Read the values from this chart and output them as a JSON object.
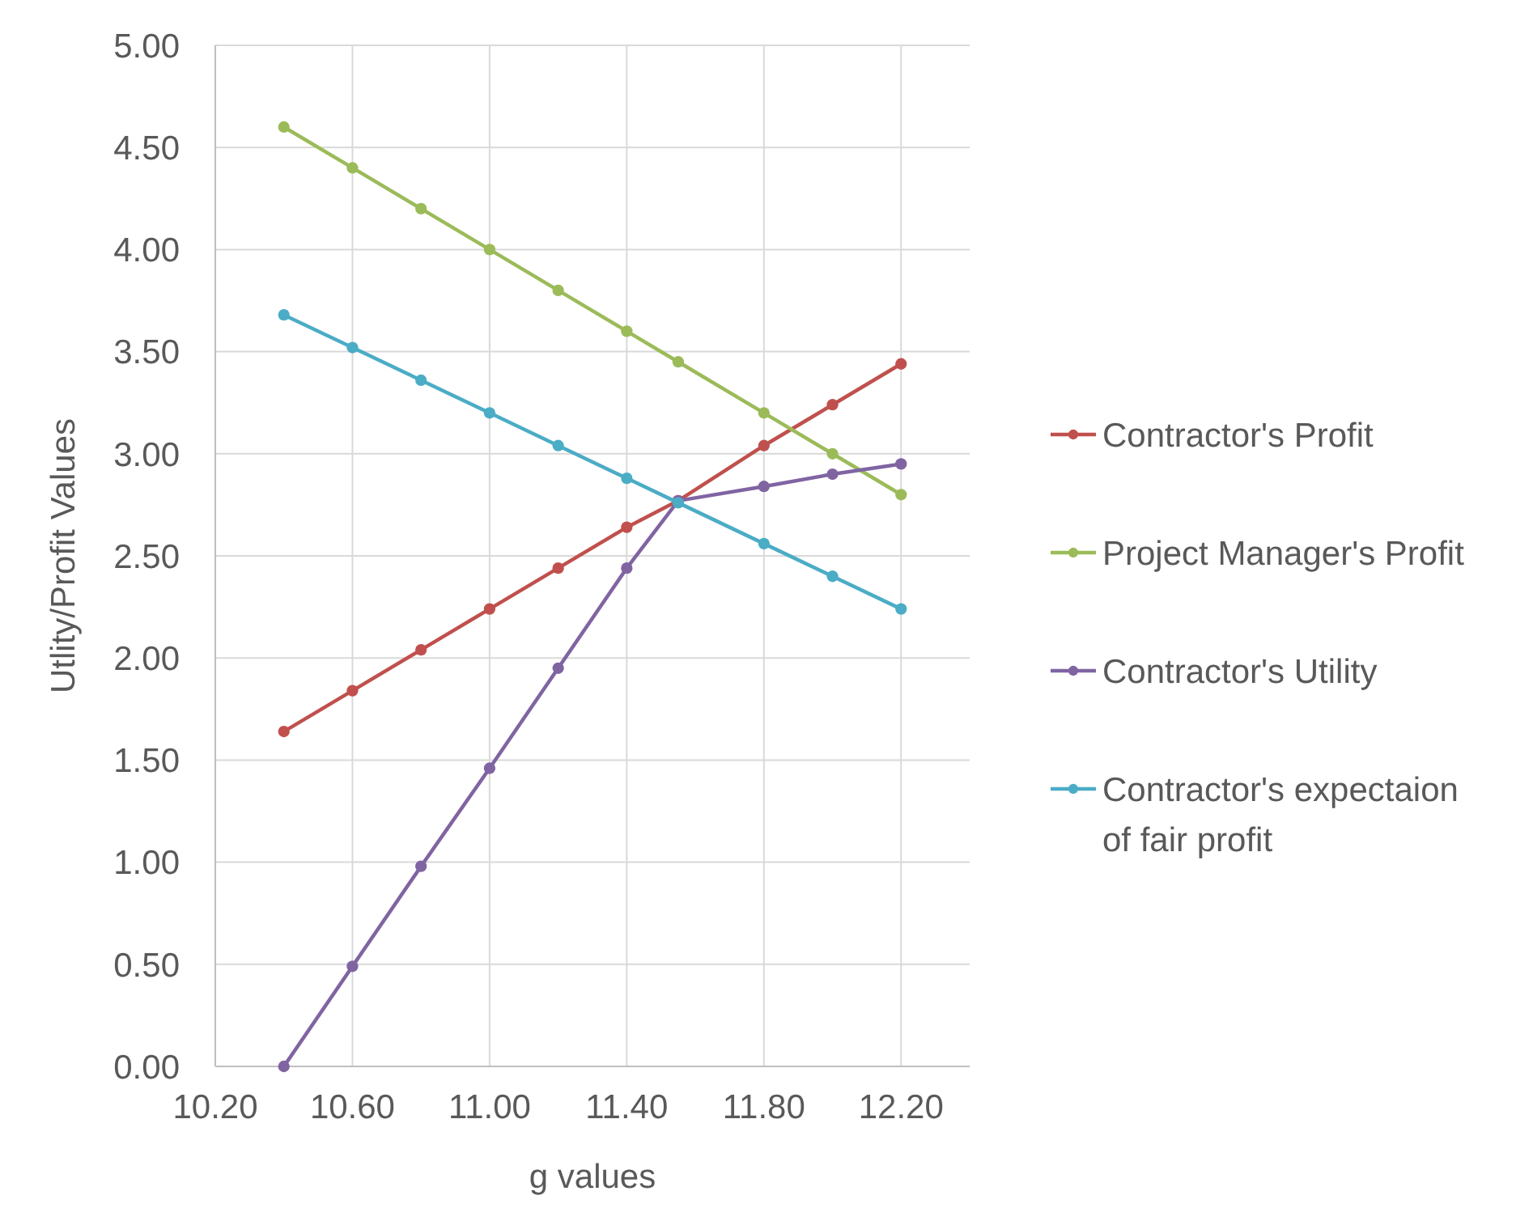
{
  "chart_data": {
    "type": "line",
    "xlabel": "g values",
    "ylabel": "Utlity/Profit Values",
    "xlim": [
      10.2,
      12.4
    ],
    "xticks": [
      {
        "value": 10.2,
        "label": "10.20"
      },
      {
        "value": 10.6,
        "label": "10.60"
      },
      {
        "value": 11.0,
        "label": "11.00"
      },
      {
        "value": 11.4,
        "label": "11.40"
      },
      {
        "value": 11.8,
        "label": "11.80"
      },
      {
        "value": 12.2,
        "label": "12.20"
      }
    ],
    "ylim": [
      0,
      5
    ],
    "yticks": [
      {
        "value": 0,
        "label": "0.00"
      },
      {
        "value": 0.5,
        "label": "0.50"
      },
      {
        "value": 1,
        "label": "1.00"
      },
      {
        "value": 1.5,
        "label": "1.50"
      },
      {
        "value": 2,
        "label": "2.00"
      },
      {
        "value": 2.5,
        "label": "2.50"
      },
      {
        "value": 3,
        "label": "3.00"
      },
      {
        "value": 3.5,
        "label": "3.50"
      },
      {
        "value": 4,
        "label": "4.00"
      },
      {
        "value": 4.5,
        "label": "4.50"
      },
      {
        "value": 5,
        "label": "5.00"
      }
    ],
    "x": [
      10.4,
      10.6,
      10.8,
      11.0,
      11.2,
      11.4,
      11.55,
      11.8,
      12.0,
      12.2
    ],
    "series": [
      {
        "name": "Contractor's Profit",
        "color": "#c0504d",
        "values": [
          1.64,
          1.84,
          2.04,
          2.24,
          2.44,
          2.64,
          2.77,
          3.04,
          3.24,
          3.44
        ]
      },
      {
        "name": "Project Manager's Profit",
        "color": "#9bbb59",
        "values": [
          4.6,
          4.4,
          4.2,
          4.0,
          3.8,
          3.6,
          3.45,
          3.2,
          3.0,
          2.8
        ]
      },
      {
        "name": "Contractor's Utility",
        "color": "#8064a2",
        "values": [
          0,
          0.49,
          0.98,
          1.46,
          1.95,
          2.44,
          2.77,
          2.84,
          2.9,
          2.95
        ]
      },
      {
        "name": "Contractor's expectaion of fair profit",
        "color": "#4bacc6",
        "values": [
          3.68,
          3.52,
          3.36,
          3.2,
          3.04,
          2.88,
          2.76,
          2.56,
          2.4,
          2.24
        ]
      }
    ],
    "grid": true,
    "legend": "right",
    "marker": "circle",
    "line_style": "solid"
  }
}
